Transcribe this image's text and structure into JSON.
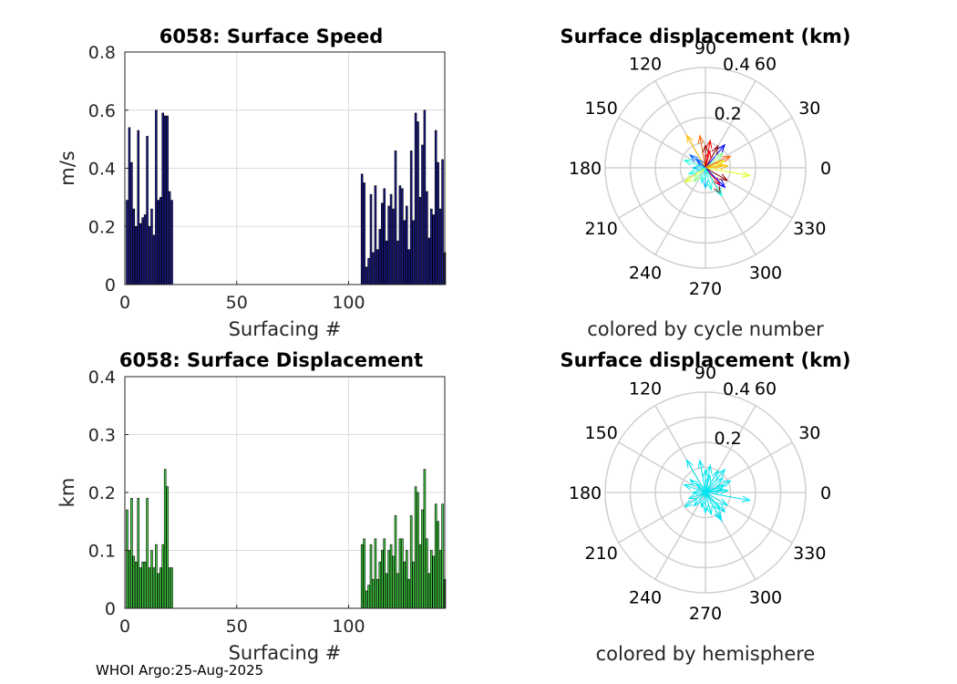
{
  "footer": "WHOI Argo:25-Aug-2025",
  "colors": {
    "speed_bar": "#1a1a8c",
    "disp_bar": "#40d040",
    "hemisphere": "#00e5f0",
    "grid": "#dcdcdc",
    "polar_grid": "#d0d0d0"
  },
  "chart_data": [
    {
      "id": "speed",
      "type": "bar",
      "title": "6058: Surface Speed",
      "xlabel": "Surfacing #",
      "ylabel": "m/s",
      "xlim": [
        0,
        143
      ],
      "ylim": [
        0,
        0.8
      ],
      "xticks": [
        0,
        50,
        100
      ],
      "yticks": [
        0,
        0.2,
        0.4,
        0.6,
        0.8
      ],
      "x": [
        1,
        2,
        3,
        4,
        5,
        6,
        7,
        8,
        9,
        10,
        11,
        12,
        13,
        14,
        15,
        16,
        17,
        18,
        19,
        20,
        21,
        106,
        107,
        108,
        109,
        110,
        111,
        112,
        113,
        114,
        115,
        116,
        117,
        118,
        119,
        120,
        121,
        122,
        123,
        124,
        125,
        126,
        127,
        128,
        129,
        130,
        131,
        132,
        133,
        134,
        135,
        136,
        137,
        138,
        139,
        140,
        141,
        142,
        143
      ],
      "values": [
        0.29,
        0.54,
        0.42,
        0.26,
        0.2,
        0.53,
        0.21,
        0.23,
        0.24,
        0.51,
        0.2,
        0.26,
        0.17,
        0.6,
        0.29,
        0.3,
        0.59,
        0.58,
        0.58,
        0.32,
        0.29,
        0.38,
        0.35,
        0.06,
        0.09,
        0.31,
        0.11,
        0.34,
        0.12,
        0.19,
        0.28,
        0.33,
        0.15,
        0.27,
        0.31,
        0.26,
        0.46,
        0.15,
        0.34,
        0.33,
        0.22,
        0.27,
        0.12,
        0.46,
        0.22,
        0.59,
        0.56,
        0.3,
        0.48,
        0.6,
        0.32,
        0.16,
        0.26,
        0.24,
        0.53,
        0.42,
        0.26,
        0.43,
        0.11
      ]
    },
    {
      "id": "displacement",
      "type": "bar",
      "title": "6058: Surface Displacement",
      "xlabel": "Surfacing #",
      "ylabel": "km",
      "xlim": [
        0,
        143
      ],
      "ylim": [
        0,
        0.4
      ],
      "xticks": [
        0,
        50,
        100
      ],
      "yticks": [
        0,
        0.1,
        0.2,
        0.3,
        0.4
      ],
      "x": [
        1,
        2,
        3,
        4,
        5,
        6,
        7,
        8,
        9,
        10,
        11,
        12,
        13,
        14,
        15,
        16,
        17,
        18,
        19,
        20,
        21,
        106,
        107,
        108,
        109,
        110,
        111,
        112,
        113,
        114,
        115,
        116,
        117,
        118,
        119,
        120,
        121,
        122,
        123,
        124,
        125,
        126,
        127,
        128,
        129,
        130,
        131,
        132,
        133,
        134,
        135,
        136,
        137,
        138,
        139,
        140,
        141,
        142,
        143
      ],
      "values": [
        0.17,
        0.1,
        0.19,
        0.09,
        0.08,
        0.19,
        0.07,
        0.08,
        0.08,
        0.19,
        0.07,
        0.1,
        0.07,
        0.11,
        0.06,
        0.07,
        0.11,
        0.24,
        0.21,
        0.07,
        0.07,
        0.11,
        0.12,
        0.03,
        0.04,
        0.11,
        0.05,
        0.12,
        0.05,
        0.08,
        0.1,
        0.12,
        0.06,
        0.1,
        0.11,
        0.09,
        0.16,
        0.06,
        0.12,
        0.12,
        0.08,
        0.1,
        0.05,
        0.16,
        0.08,
        0.21,
        0.2,
        0.11,
        0.17,
        0.24,
        0.12,
        0.06,
        0.1,
        0.09,
        0.18,
        0.15,
        0.1,
        0.18,
        0.05
      ]
    },
    {
      "id": "polar-cycle",
      "type": "polar-quiver",
      "title": "Surface displacement (km)",
      "caption": "colored by cycle number",
      "rmax": 0.4,
      "rticks": [
        0.2,
        0.4
      ],
      "rtick_labels": [
        "0.2",
        "0.4"
      ],
      "angle_labels": [
        "0",
        "30",
        "60",
        "90",
        "120",
        "150",
        "180",
        "210",
        "240",
        "270",
        "300",
        "330"
      ],
      "colormap": [
        "#00008f",
        "#0000ff",
        "#0060ff",
        "#00c0ff",
        "#20ffe0",
        "#80ff80",
        "#e0ff20",
        "#ffc000",
        "#ff6000",
        "#ff0000",
        "#900000"
      ],
      "arrows": [
        {
          "angle": 50,
          "r": 0.12,
          "c": 0.05
        },
        {
          "angle": 120,
          "r": 0.15,
          "c": 0.7
        },
        {
          "angle": 200,
          "r": 0.07,
          "c": 0.4
        },
        {
          "angle": 330,
          "r": 0.1,
          "c": 0.95
        },
        {
          "angle": 300,
          "r": 0.12,
          "c": 0.98
        },
        {
          "angle": 310,
          "r": 0.09,
          "c": 0.85
        },
        {
          "angle": 20,
          "r": 0.08,
          "c": 0.6
        },
        {
          "angle": 80,
          "r": 0.11,
          "c": 0.9
        },
        {
          "angle": 160,
          "r": 0.09,
          "c": 0.35
        },
        {
          "angle": 100,
          "r": 0.13,
          "c": 0.8
        },
        {
          "angle": 60,
          "r": 0.1,
          "c": 1.0
        },
        {
          "angle": 230,
          "r": 0.07,
          "c": 0.45
        },
        {
          "angle": 270,
          "r": 0.08,
          "c": 0.3
        },
        {
          "angle": 350,
          "r": 0.18,
          "c": 0.55
        },
        {
          "angle": 10,
          "r": 0.07,
          "c": 0.65
        },
        {
          "angle": 140,
          "r": 0.08,
          "c": 0.2
        },
        {
          "angle": 40,
          "r": 0.09,
          "c": 0.5
        },
        {
          "angle": 300,
          "r": 0.13,
          "c": 0.35
        },
        {
          "angle": 180,
          "r": 0.05,
          "c": 0.25
        },
        {
          "angle": 215,
          "r": 0.1,
          "c": 0.55
        },
        {
          "angle": 75,
          "r": 0.07,
          "c": 0.92
        },
        {
          "angle": 5,
          "r": 0.09,
          "c": 0.72
        },
        {
          "angle": 255,
          "r": 0.06,
          "c": 0.38
        },
        {
          "angle": 315,
          "r": 0.11,
          "c": 0.1
        },
        {
          "angle": 90,
          "r": 0.09,
          "c": 0.97
        },
        {
          "angle": 135,
          "r": 0.05,
          "c": 0.15
        },
        {
          "angle": 25,
          "r": 0.11,
          "c": 0.75
        },
        {
          "angle": 285,
          "r": 0.09,
          "c": 0.42
        }
      ]
    },
    {
      "id": "polar-hemisphere",
      "type": "polar-quiver",
      "title": "Surface displacement (km)",
      "caption": "colored by hemisphere",
      "rmax": 0.4,
      "rticks": [
        0.2,
        0.4
      ],
      "rtick_labels": [
        "0.2",
        "0.4"
      ],
      "angle_labels": [
        "0",
        "30",
        "60",
        "90",
        "120",
        "150",
        "180",
        "210",
        "240",
        "270",
        "300",
        "330"
      ],
      "arrows": [
        {
          "angle": 50,
          "r": 0.12
        },
        {
          "angle": 120,
          "r": 0.15
        },
        {
          "angle": 200,
          "r": 0.07
        },
        {
          "angle": 330,
          "r": 0.1
        },
        {
          "angle": 300,
          "r": 0.12
        },
        {
          "angle": 310,
          "r": 0.09
        },
        {
          "angle": 20,
          "r": 0.08
        },
        {
          "angle": 80,
          "r": 0.11
        },
        {
          "angle": 160,
          "r": 0.09
        },
        {
          "angle": 100,
          "r": 0.13
        },
        {
          "angle": 60,
          "r": 0.1
        },
        {
          "angle": 230,
          "r": 0.07
        },
        {
          "angle": 270,
          "r": 0.08
        },
        {
          "angle": 350,
          "r": 0.18
        },
        {
          "angle": 10,
          "r": 0.07
        },
        {
          "angle": 140,
          "r": 0.08
        },
        {
          "angle": 40,
          "r": 0.09
        },
        {
          "angle": 300,
          "r": 0.13
        },
        {
          "angle": 180,
          "r": 0.05
        },
        {
          "angle": 215,
          "r": 0.1
        },
        {
          "angle": 75,
          "r": 0.07
        },
        {
          "angle": 5,
          "r": 0.09
        },
        {
          "angle": 255,
          "r": 0.06
        },
        {
          "angle": 315,
          "r": 0.11
        },
        {
          "angle": 90,
          "r": 0.09
        },
        {
          "angle": 135,
          "r": 0.05
        },
        {
          "angle": 25,
          "r": 0.11
        },
        {
          "angle": 285,
          "r": 0.09
        }
      ]
    }
  ]
}
